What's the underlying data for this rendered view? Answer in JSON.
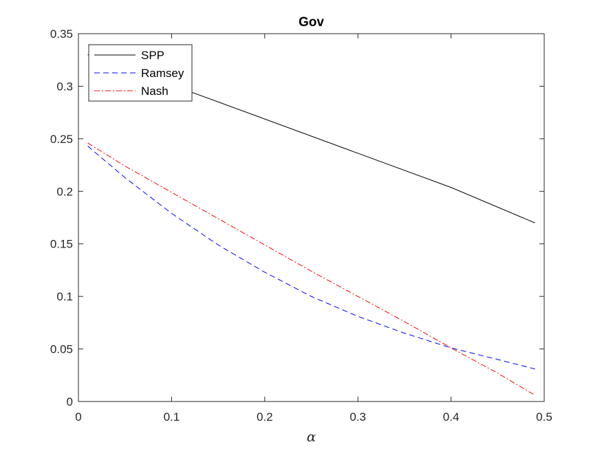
{
  "chart_data": {
    "type": "line",
    "title": "Gov",
    "xlabel": "α",
    "ylabel": "",
    "xlim": [
      0,
      0.5
    ],
    "ylim": [
      0,
      0.35
    ],
    "xticks": [
      0,
      0.1,
      0.2,
      0.3,
      0.4,
      0.5
    ],
    "xtick_labels": [
      "0",
      "0.1",
      "0.2",
      "0.3",
      "0.4",
      "0.5"
    ],
    "yticks": [
      0,
      0.05,
      0.1,
      0.15,
      0.2,
      0.25,
      0.3,
      0.35
    ],
    "ytick_labels": [
      "0",
      "0.05",
      "0.1",
      "0.15",
      "0.2",
      "0.25",
      "0.3",
      "0.35"
    ],
    "grid": false,
    "legend_position": "top-left",
    "series": [
      {
        "name": "SPP",
        "color": "#000000",
        "style": "solid",
        "x": [
          0.01,
          0.1,
          0.2,
          0.3,
          0.4,
          0.49
        ],
        "y": [
          0.33,
          0.3013,
          0.2688,
          0.2362,
          0.2037,
          0.17
        ]
      },
      {
        "name": "Ramsey",
        "color": "#0000ff",
        "style": "dashed",
        "x": [
          0.01,
          0.05,
          0.1,
          0.15,
          0.2,
          0.25,
          0.3,
          0.35,
          0.4,
          0.45,
          0.49
        ],
        "y": [
          0.243,
          0.213,
          0.179,
          0.149,
          0.123,
          0.1,
          0.081,
          0.065,
          0.051,
          0.04,
          0.031
        ]
      },
      {
        "name": "Nash",
        "color": "#ff0000",
        "style": "dashdot",
        "x": [
          0.01,
          0.05,
          0.1,
          0.15,
          0.2,
          0.25,
          0.3,
          0.35,
          0.4,
          0.45,
          0.49
        ],
        "y": [
          0.246,
          0.224,
          0.199,
          0.174,
          0.149,
          0.124,
          0.1,
          0.076,
          0.051,
          0.027,
          0.006
        ]
      }
    ]
  }
}
